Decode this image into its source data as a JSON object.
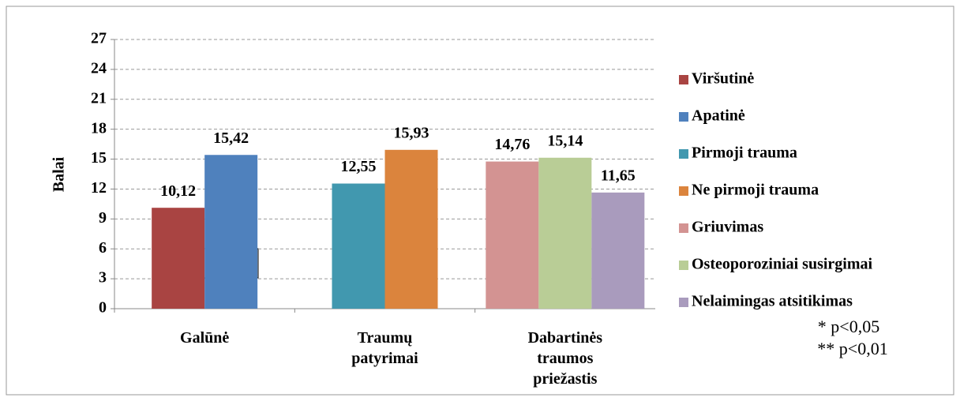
{
  "chart_data": {
    "type": "bar",
    "y_label": "Balai",
    "categories": [
      "Galūnė",
      "Traumų patyrimai",
      "Dabartinės traumos priežastis"
    ],
    "series": [
      {
        "name": "Viršutinė",
        "color": "#a94442",
        "values": [
          10.12,
          null,
          null
        ],
        "value_labels": [
          "10,12",
          null,
          null
        ]
      },
      {
        "name": "Apatinė",
        "color": "#4f81bd",
        "values": [
          15.42,
          null,
          null
        ],
        "value_labels": [
          "15,42",
          null,
          null
        ]
      },
      {
        "name": "Pirmoji trauma",
        "color": "#4198af",
        "values": [
          null,
          12.55,
          null
        ],
        "value_labels": [
          null,
          "12,55",
          null
        ]
      },
      {
        "name": "Ne pirmoji trauma",
        "color": "#db843d",
        "values": [
          null,
          15.93,
          null
        ],
        "value_labels": [
          null,
          "15,93",
          null
        ]
      },
      {
        "name": "Griuvimas",
        "color": "#d39392",
        "values": [
          null,
          null,
          14.76
        ],
        "value_labels": [
          null,
          null,
          "14,76"
        ]
      },
      {
        "name": "Osteoporoziniai susirgimai",
        "color": "#b9cd96",
        "values": [
          null,
          null,
          15.14
        ],
        "value_labels": [
          null,
          null,
          "15,14"
        ]
      },
      {
        "name": "Nelaimingas atsitikimas",
        "color": "#a99bbd",
        "values": [
          null,
          null,
          11.65
        ],
        "value_labels": [
          null,
          null,
          "11,65"
        ]
      }
    ],
    "ylim": [
      0,
      27
    ],
    "yticks": [
      0,
      3,
      6,
      9,
      12,
      15,
      18,
      21,
      24,
      27
    ],
    "grid": true,
    "annotations": [
      "**",
      "*"
    ],
    "notes": [
      "* p<0,05",
      "** p<0,01"
    ]
  }
}
